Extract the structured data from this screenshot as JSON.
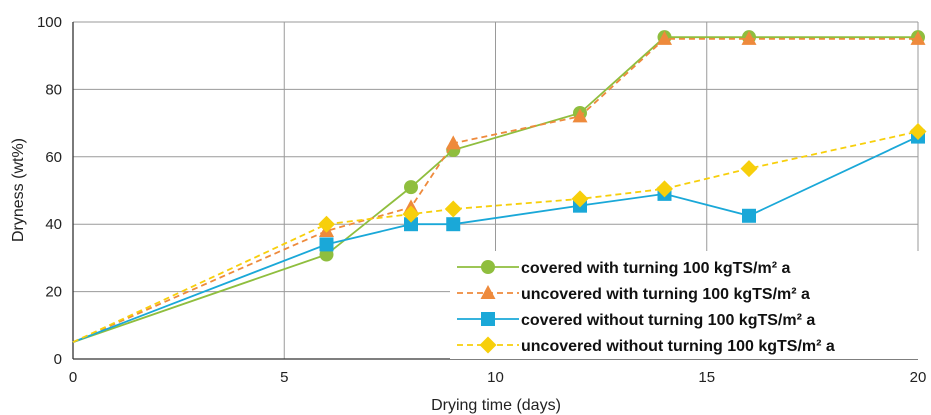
{
  "chart_data": {
    "type": "line",
    "xlabel": "Drying time (days)",
    "ylabel": "Dryness (wt%)",
    "xlim": [
      0,
      20
    ],
    "ylim": [
      0,
      100
    ],
    "xticks": [
      0,
      5,
      10,
      15,
      20
    ],
    "yticks": [
      0,
      20,
      40,
      60,
      80,
      100
    ],
    "grid": true,
    "legend_position": "bottom-right",
    "series": [
      {
        "name": "covered with turning 100 kgTS/m² a",
        "color": "#8fbe3e",
        "marker": "circle",
        "dash": "solid",
        "points": [
          [
            0,
            5
          ],
          [
            6,
            31
          ],
          [
            8,
            51
          ],
          [
            9,
            62
          ],
          [
            12,
            73
          ],
          [
            14,
            95.5
          ],
          [
            16,
            95.5
          ],
          [
            20,
            95.5
          ]
        ]
      },
      {
        "name": "uncovered with turning 100 kgTS/m² a",
        "color": "#ee8a3c",
        "marker": "triangle",
        "dash": "dashed",
        "points": [
          [
            0,
            5
          ],
          [
            6,
            38
          ],
          [
            8,
            45
          ],
          [
            9,
            64
          ],
          [
            12,
            72
          ],
          [
            14,
            95
          ],
          [
            16,
            95
          ],
          [
            20,
            95
          ]
        ]
      },
      {
        "name": "covered without turning 100 kgTS/m² a",
        "color": "#1aa8d8",
        "marker": "square",
        "dash": "solid",
        "points": [
          [
            0,
            5
          ],
          [
            6,
            34
          ],
          [
            8,
            40
          ],
          [
            9,
            40
          ],
          [
            12,
            45.5
          ],
          [
            14,
            49
          ],
          [
            16,
            42.5
          ],
          [
            20,
            66
          ]
        ]
      },
      {
        "name": "uncovered without turning 100 kgTS/m² a",
        "color": "#f7cf0b",
        "marker": "diamond",
        "dash": "dashed",
        "points": [
          [
            0,
            5
          ],
          [
            6,
            40
          ],
          [
            8,
            43
          ],
          [
            9,
            44.5
          ],
          [
            12,
            47.5
          ],
          [
            14,
            50.5
          ],
          [
            16,
            56.5
          ],
          [
            20,
            67.5
          ]
        ]
      }
    ]
  }
}
